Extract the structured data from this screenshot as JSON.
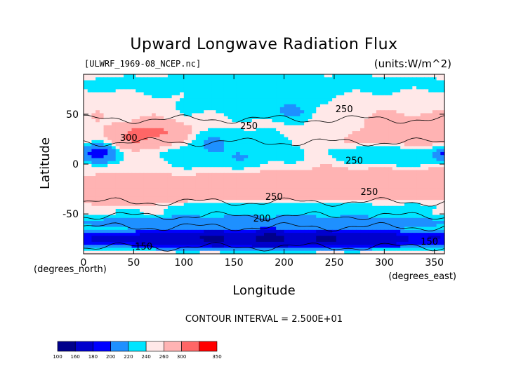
{
  "chart_data": {
    "type": "heatmap",
    "title": "Upward Longwave Radiation Flux",
    "source_label": "[ULWRF_1969-08_NCEP.nc]",
    "units_label": "(units:W/m^2)",
    "xlabel": "Longitude",
    "ylabel": "Latitude",
    "x_unit_label": "(degrees_east)",
    "y_unit_label": "(degrees_north)",
    "xlim": [
      0,
      360
    ],
    "ylim": [
      -90,
      90
    ],
    "x_ticks": [
      0,
      50,
      100,
      150,
      200,
      250,
      300,
      350
    ],
    "y_ticks": [
      -50,
      0,
      50
    ],
    "contour_interval_text": "CONTOUR INTERVAL = 2.500E+01",
    "contour_labels": [
      {
        "text": "250",
        "lon": 260,
        "lat": 55
      },
      {
        "text": "250",
        "lon": 165,
        "lat": 38
      },
      {
        "text": "300",
        "lon": 45,
        "lat": 26
      },
      {
        "text": "250",
        "lon": 270,
        "lat": 3
      },
      {
        "text": "250",
        "lon": 285,
        "lat": -28
      },
      {
        "text": "250",
        "lon": 190,
        "lat": -33
      },
      {
        "text": "200",
        "lon": 178,
        "lat": -55
      },
      {
        "text": "150",
        "lon": 345,
        "lat": -78
      },
      {
        "text": "150",
        "lon": 60,
        "lat": -83
      }
    ],
    "colorbar": {
      "levels": [
        "100",
        "160",
        "180",
        "200",
        "220",
        "240",
        "260",
        "300",
        "350"
      ],
      "colors": [
        "#00008b",
        "#0000cd",
        "#0000ff",
        "#1e90ff",
        "#00e5ff",
        "#ffe8e8",
        "#ffb3b3",
        "#ff6666",
        "#ff0000"
      ]
    },
    "field": {
      "base": 255,
      "regions": [
        {
          "lon": 0,
          "lat": -75,
          "w": 360,
          "h": 15,
          "v": 145
        },
        {
          "lon": 0,
          "lat": -58,
          "w": 360,
          "h": 10,
          "v": 195
        },
        {
          "lon": 0,
          "lat": -45,
          "w": 360,
          "h": 10,
          "v": 225
        },
        {
          "lon": 0,
          "lat": -30,
          "w": 100,
          "h": 25,
          "v": 285
        },
        {
          "lon": 100,
          "lat": -22,
          "w": 120,
          "h": 22,
          "v": 275
        },
        {
          "lon": 220,
          "lat": -20,
          "w": 140,
          "h": 25,
          "v": 285
        },
        {
          "lon": 40,
          "lat": 28,
          "w": 60,
          "h": 20,
          "v": 320
        },
        {
          "lon": 270,
          "lat": 30,
          "w": 100,
          "h": 25,
          "v": 290
        },
        {
          "lon": 170,
          "lat": 35,
          "w": 120,
          "h": 15,
          "v": 240
        },
        {
          "lon": 80,
          "lat": 15,
          "w": 120,
          "h": 30,
          "v": 215
        },
        {
          "lon": 260,
          "lat": 10,
          "w": 90,
          "h": 20,
          "v": 215
        },
        {
          "lon": 0,
          "lat": 10,
          "w": 30,
          "h": 15,
          "v": 185
        },
        {
          "lon": 350,
          "lat": 10,
          "w": 15,
          "h": 12,
          "v": 185
        },
        {
          "lon": 180,
          "lat": 55,
          "w": 40,
          "h": 18,
          "v": 210
        },
        {
          "lon": 0,
          "lat": 80,
          "w": 360,
          "h": 15,
          "v": 225
        },
        {
          "lon": 100,
          "lat": 65,
          "w": 130,
          "h": 30,
          "v": 225
        }
      ]
    }
  }
}
